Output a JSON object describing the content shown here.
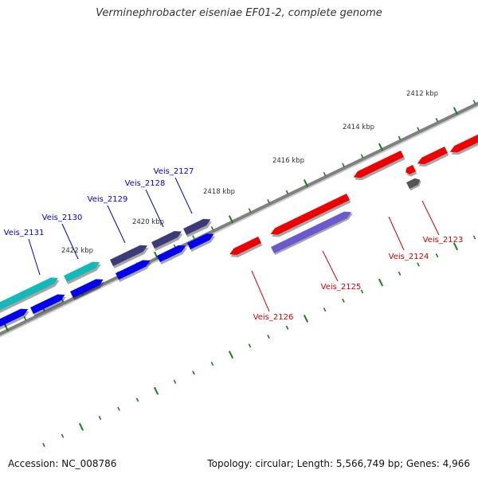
{
  "header": {
    "title": "Verminephrobacter eiseniae EF01-2, complete genome"
  },
  "footer": {
    "accession": "Accession: NC_008786",
    "summary": "Topology: circular; Length: 5,566,749 bp; Genes: 4,966"
  },
  "colors": {
    "backbone": "#808080",
    "tick": "#1a7f1a",
    "forward_gene": "#0000ee",
    "reverse_gene": "#ee0000",
    "label_forward": "#0000cc",
    "label_reverse": "#cc0000",
    "cog_teal": "#14b8b8",
    "cog_slate": "#3d3a7a",
    "cog_lavender": "#6a5acd",
    "cog_gray": "#555555"
  },
  "scale": {
    "position_labels": [
      "2412 kbp",
      "2414 kbp",
      "2416 kbp",
      "2418 kbp",
      "2420 kbp",
      "2422 kbp"
    ]
  },
  "genes": [
    {
      "id": "Veis_2131",
      "strand": "forward"
    },
    {
      "id": "Veis_2130",
      "strand": "forward"
    },
    {
      "id": "Veis_2129",
      "strand": "forward"
    },
    {
      "id": "Veis_2128",
      "strand": "forward"
    },
    {
      "id": "Veis_2127",
      "strand": "forward"
    },
    {
      "id": "Veis_2126",
      "strand": "reverse"
    },
    {
      "id": "Veis_2125",
      "strand": "reverse"
    },
    {
      "id": "Veis_2124",
      "strand": "reverse"
    },
    {
      "id": "Veis_2123",
      "strand": "reverse"
    }
  ]
}
